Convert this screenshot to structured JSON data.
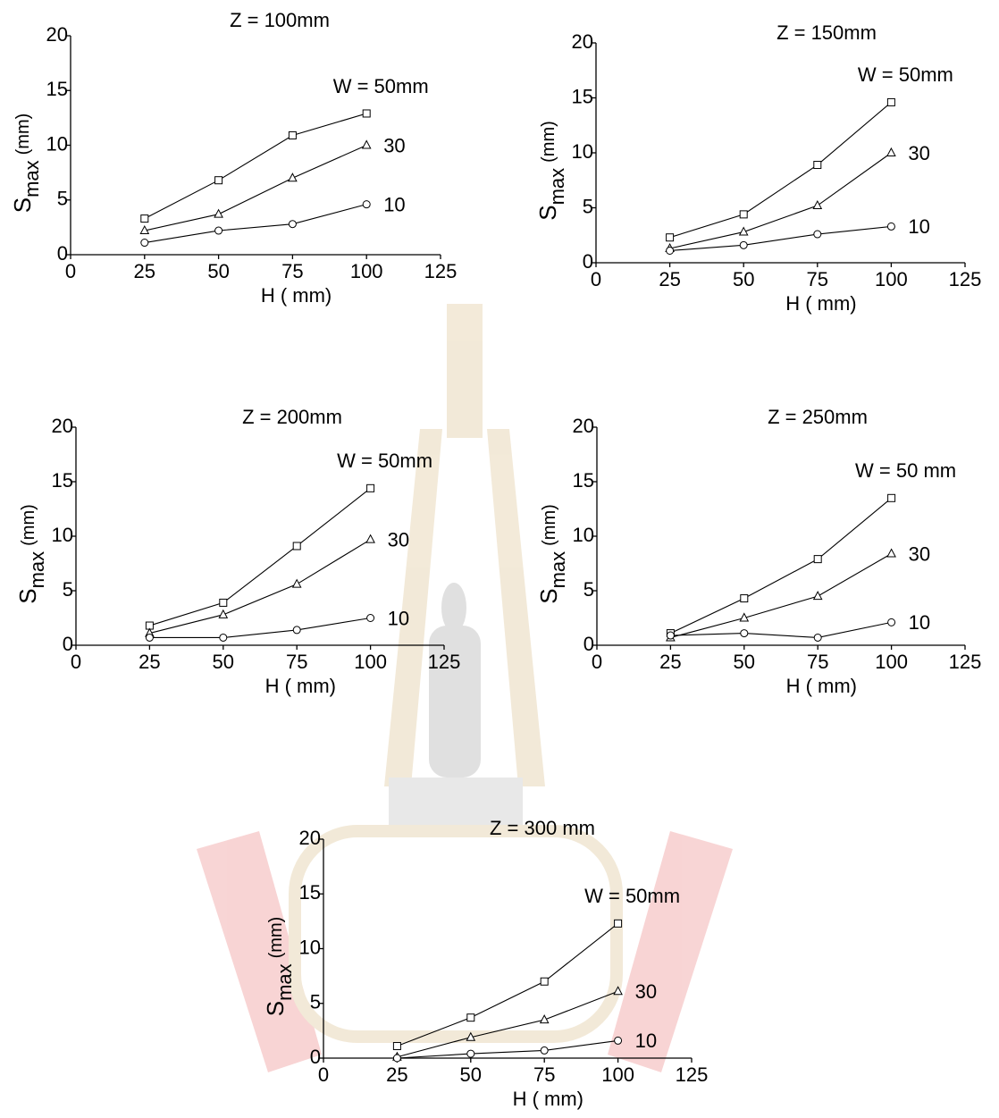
{
  "chart_data": [
    {
      "type": "line",
      "title": "Z = 100mm",
      "x_label": "H ( mm)",
      "y_label": {
        "main": "S",
        "sub": "max",
        "unit": "(mm)"
      },
      "x": [
        25,
        50,
        75,
        100
      ],
      "xlim": [
        0,
        125
      ],
      "xticks": [
        0,
        25,
        50,
        75,
        100,
        125
      ],
      "ylim": [
        0,
        20
      ],
      "yticks": [
        0,
        5,
        10,
        15,
        20
      ],
      "series": [
        {
          "name": "W = 50mm",
          "marker": "square",
          "color": "#000000",
          "values": [
            3.3,
            6.8,
            10.9,
            12.9
          ]
        },
        {
          "name": "30",
          "marker": "triangle",
          "color": "#000000",
          "values": [
            2.2,
            3.7,
            7.0,
            10.0
          ]
        },
        {
          "name": "10",
          "marker": "circle",
          "color": "#000000",
          "values": [
            1.1,
            2.2,
            2.8,
            4.6
          ]
        }
      ]
    },
    {
      "type": "line",
      "title": "Z = 150mm",
      "x_label": "H ( mm)",
      "y_label": {
        "main": "S",
        "sub": "max",
        "unit": "(mm)"
      },
      "x": [
        25,
        50,
        75,
        100
      ],
      "xlim": [
        0,
        125
      ],
      "xticks": [
        0,
        25,
        50,
        75,
        100,
        125
      ],
      "ylim": [
        0,
        20
      ],
      "yticks": [
        0,
        5,
        10,
        15,
        20
      ],
      "series": [
        {
          "name": "W = 50mm",
          "marker": "square",
          "color": "#000000",
          "values": [
            2.3,
            4.4,
            8.9,
            14.6
          ]
        },
        {
          "name": "30",
          "marker": "triangle",
          "color": "#000000",
          "values": [
            1.3,
            2.8,
            5.2,
            10.0
          ]
        },
        {
          "name": "10",
          "marker": "circle",
          "color": "#000000",
          "values": [
            1.1,
            1.6,
            2.6,
            3.3
          ]
        }
      ]
    },
    {
      "type": "line",
      "title": "Z = 200mm",
      "x_label": "H ( mm)",
      "y_label": {
        "main": "S",
        "sub": "max",
        "unit": "(mm)"
      },
      "x": [
        25,
        50,
        75,
        100
      ],
      "xlim": [
        0,
        125
      ],
      "xticks": [
        0,
        25,
        50,
        75,
        100,
        125
      ],
      "ylim": [
        0,
        20
      ],
      "yticks": [
        0,
        5,
        10,
        15,
        20
      ],
      "series": [
        {
          "name": "W = 50mm",
          "marker": "square",
          "color": "#000000",
          "values": [
            1.8,
            3.9,
            9.1,
            14.4
          ]
        },
        {
          "name": "30",
          "marker": "triangle",
          "color": "#000000",
          "values": [
            1.1,
            2.8,
            5.6,
            9.7
          ]
        },
        {
          "name": "10",
          "marker": "circle",
          "color": "#000000",
          "values": [
            0.7,
            0.7,
            1.4,
            2.5
          ]
        }
      ]
    },
    {
      "type": "line",
      "title": "Z = 250mm",
      "x_label": "H ( mm)",
      "y_label": {
        "main": "S",
        "sub": "max",
        "unit": "(mm)"
      },
      "x": [
        25,
        50,
        75,
        100
      ],
      "xlim": [
        0,
        125
      ],
      "xticks": [
        0,
        25,
        50,
        75,
        100,
        125
      ],
      "ylim": [
        0,
        20
      ],
      "yticks": [
        0,
        5,
        10,
        15,
        20
      ],
      "series": [
        {
          "name": "W = 50 mm",
          "marker": "square",
          "color": "#000000",
          "values": [
            1.1,
            4.3,
            7.9,
            13.5
          ]
        },
        {
          "name": "30",
          "marker": "triangle",
          "color": "#000000",
          "values": [
            0.7,
            2.5,
            4.5,
            8.4
          ]
        },
        {
          "name": "10",
          "marker": "circle",
          "color": "#000000",
          "values": [
            0.9,
            1.1,
            0.7,
            2.1
          ]
        }
      ]
    },
    {
      "type": "line",
      "title": "Z =  300 mm",
      "x_label": "H ( mm)",
      "y_label": {
        "main": "S",
        "sub": "max",
        "unit": "(mm)"
      },
      "x": [
        25,
        50,
        75,
        100
      ],
      "xlim": [
        0,
        125
      ],
      "xticks": [
        0,
        25,
        50,
        75,
        100,
        125
      ],
      "ylim": [
        0,
        20
      ],
      "yticks": [
        0,
        5,
        10,
        15,
        20
      ],
      "series": [
        {
          "name": "W = 50mm",
          "marker": "square",
          "color": "#000000",
          "values": [
            1.1,
            3.7,
            7.0,
            12.3
          ]
        },
        {
          "name": "30",
          "marker": "triangle",
          "color": "#000000",
          "values": [
            0.1,
            1.9,
            3.5,
            6.1
          ]
        },
        {
          "name": "10",
          "marker": "circle",
          "color": "#000000",
          "values": [
            0,
            0.4,
            0.7,
            1.6
          ]
        }
      ]
    }
  ]
}
